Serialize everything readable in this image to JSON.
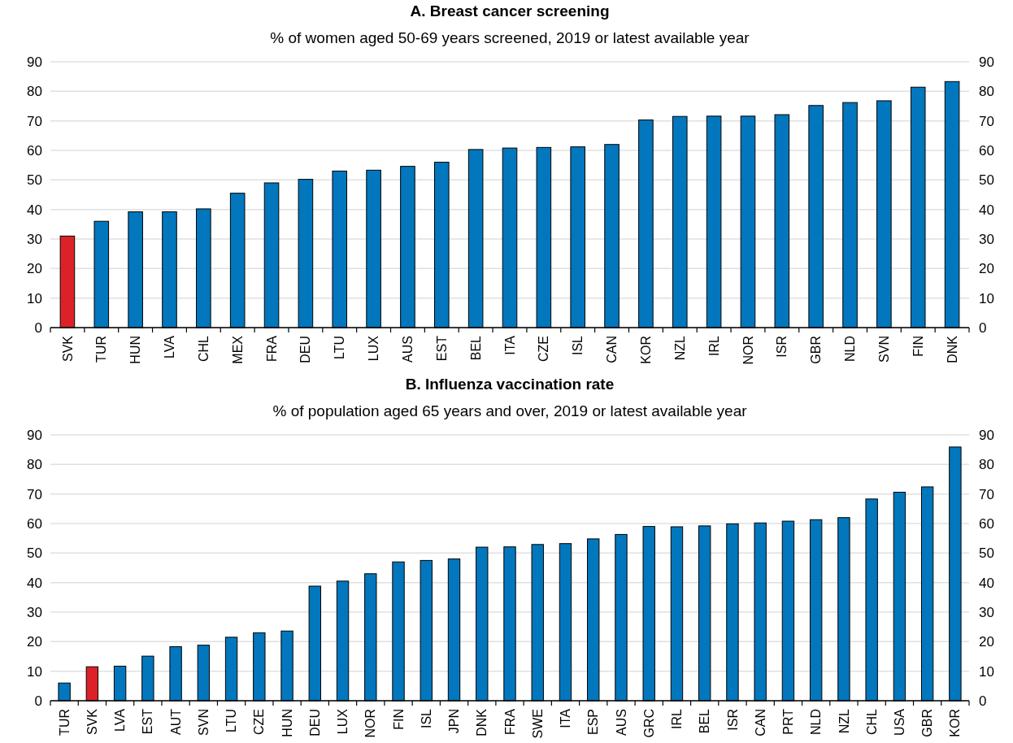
{
  "chart_data": [
    {
      "type": "bar",
      "title": "A. Breast cancer screening",
      "subtitle": "% of women aged 50-69 years screened, 2019 or latest available year",
      "categories": [
        "SVK",
        "TUR",
        "HUN",
        "LVA",
        "CHL",
        "MEX",
        "FRA",
        "DEU",
        "LTU",
        "LUX",
        "AUS",
        "EST",
        "BEL",
        "ITA",
        "CZE",
        "ISL",
        "CAN",
        "KOR",
        "NZL",
        "IRL",
        "NOR",
        "ISR",
        "GBR",
        "NLD",
        "SVN",
        "FIN",
        "DNK"
      ],
      "values": [
        31,
        36,
        39.2,
        39.2,
        40.2,
        45.5,
        49,
        50.2,
        53,
        53.3,
        54.6,
        56,
        60.3,
        60.8,
        61,
        61.2,
        62,
        70.3,
        71.5,
        71.6,
        71.6,
        72.1,
        75.2,
        76.2,
        76.8,
        81.4,
        83.3
      ],
      "colors": [
        "#dc2228",
        "#0277bd",
        "#0277bd",
        "#0277bd",
        "#0277bd",
        "#0277bd",
        "#0277bd",
        "#0277bd",
        "#0277bd",
        "#0277bd",
        "#0277bd",
        "#0277bd",
        "#0277bd",
        "#0277bd",
        "#0277bd",
        "#0277bd",
        "#0277bd",
        "#0277bd",
        "#0277bd",
        "#0277bd",
        "#0277bd",
        "#0277bd",
        "#0277bd",
        "#0277bd",
        "#0277bd",
        "#0277bd",
        "#0277bd"
      ],
      "ylim": [
        0,
        90
      ],
      "yticks": [
        0,
        10,
        20,
        30,
        40,
        50,
        60,
        70,
        80,
        90
      ],
      "y2lim": [
        0,
        90
      ],
      "y2ticks": [
        0,
        10,
        20,
        30,
        40,
        50,
        60,
        70,
        80,
        90
      ],
      "grid": "y"
    },
    {
      "type": "bar",
      "title": "B. Influenza vaccination rate",
      "subtitle": "% of population aged 65 years and over, 2019 or latest available year",
      "categories": [
        "TUR",
        "SVK",
        "LVA",
        "EST",
        "AUT",
        "SVN",
        "LTU",
        "CZE",
        "HUN",
        "DEU",
        "LUX",
        "NOR",
        "FIN",
        "ISL",
        "JPN",
        "DNK",
        "FRA",
        "SWE",
        "ITA",
        "ESP",
        "AUS",
        "GRC",
        "IRL",
        "BEL",
        "ISR",
        "CAN",
        "PRT",
        "NLD",
        "NZL",
        "CHL",
        "USA",
        "GBR",
        "KOR"
      ],
      "values": [
        6,
        11.5,
        11.7,
        15.1,
        18.3,
        18.8,
        21.5,
        23,
        23.6,
        38.8,
        40.5,
        43,
        47,
        47.5,
        48,
        52,
        52.1,
        52.9,
        53.2,
        54.8,
        56.3,
        59,
        58.9,
        59.2,
        59.9,
        60.2,
        60.8,
        61.3,
        62,
        68.3,
        70.6,
        72.4,
        85.9
      ],
      "colors": [
        "#0277bd",
        "#dc2228",
        "#0277bd",
        "#0277bd",
        "#0277bd",
        "#0277bd",
        "#0277bd",
        "#0277bd",
        "#0277bd",
        "#0277bd",
        "#0277bd",
        "#0277bd",
        "#0277bd",
        "#0277bd",
        "#0277bd",
        "#0277bd",
        "#0277bd",
        "#0277bd",
        "#0277bd",
        "#0277bd",
        "#0277bd",
        "#0277bd",
        "#0277bd",
        "#0277bd",
        "#0277bd",
        "#0277bd",
        "#0277bd",
        "#0277bd",
        "#0277bd",
        "#0277bd",
        "#0277bd",
        "#0277bd",
        "#0277bd"
      ],
      "ylim": [
        0,
        90
      ],
      "yticks": [
        0,
        10,
        20,
        30,
        40,
        50,
        60,
        70,
        80,
        90
      ],
      "y2lim": [
        0,
        90
      ],
      "y2ticks": [
        0,
        10,
        20,
        30,
        40,
        50,
        60,
        70,
        80,
        90
      ],
      "grid": "y"
    }
  ]
}
